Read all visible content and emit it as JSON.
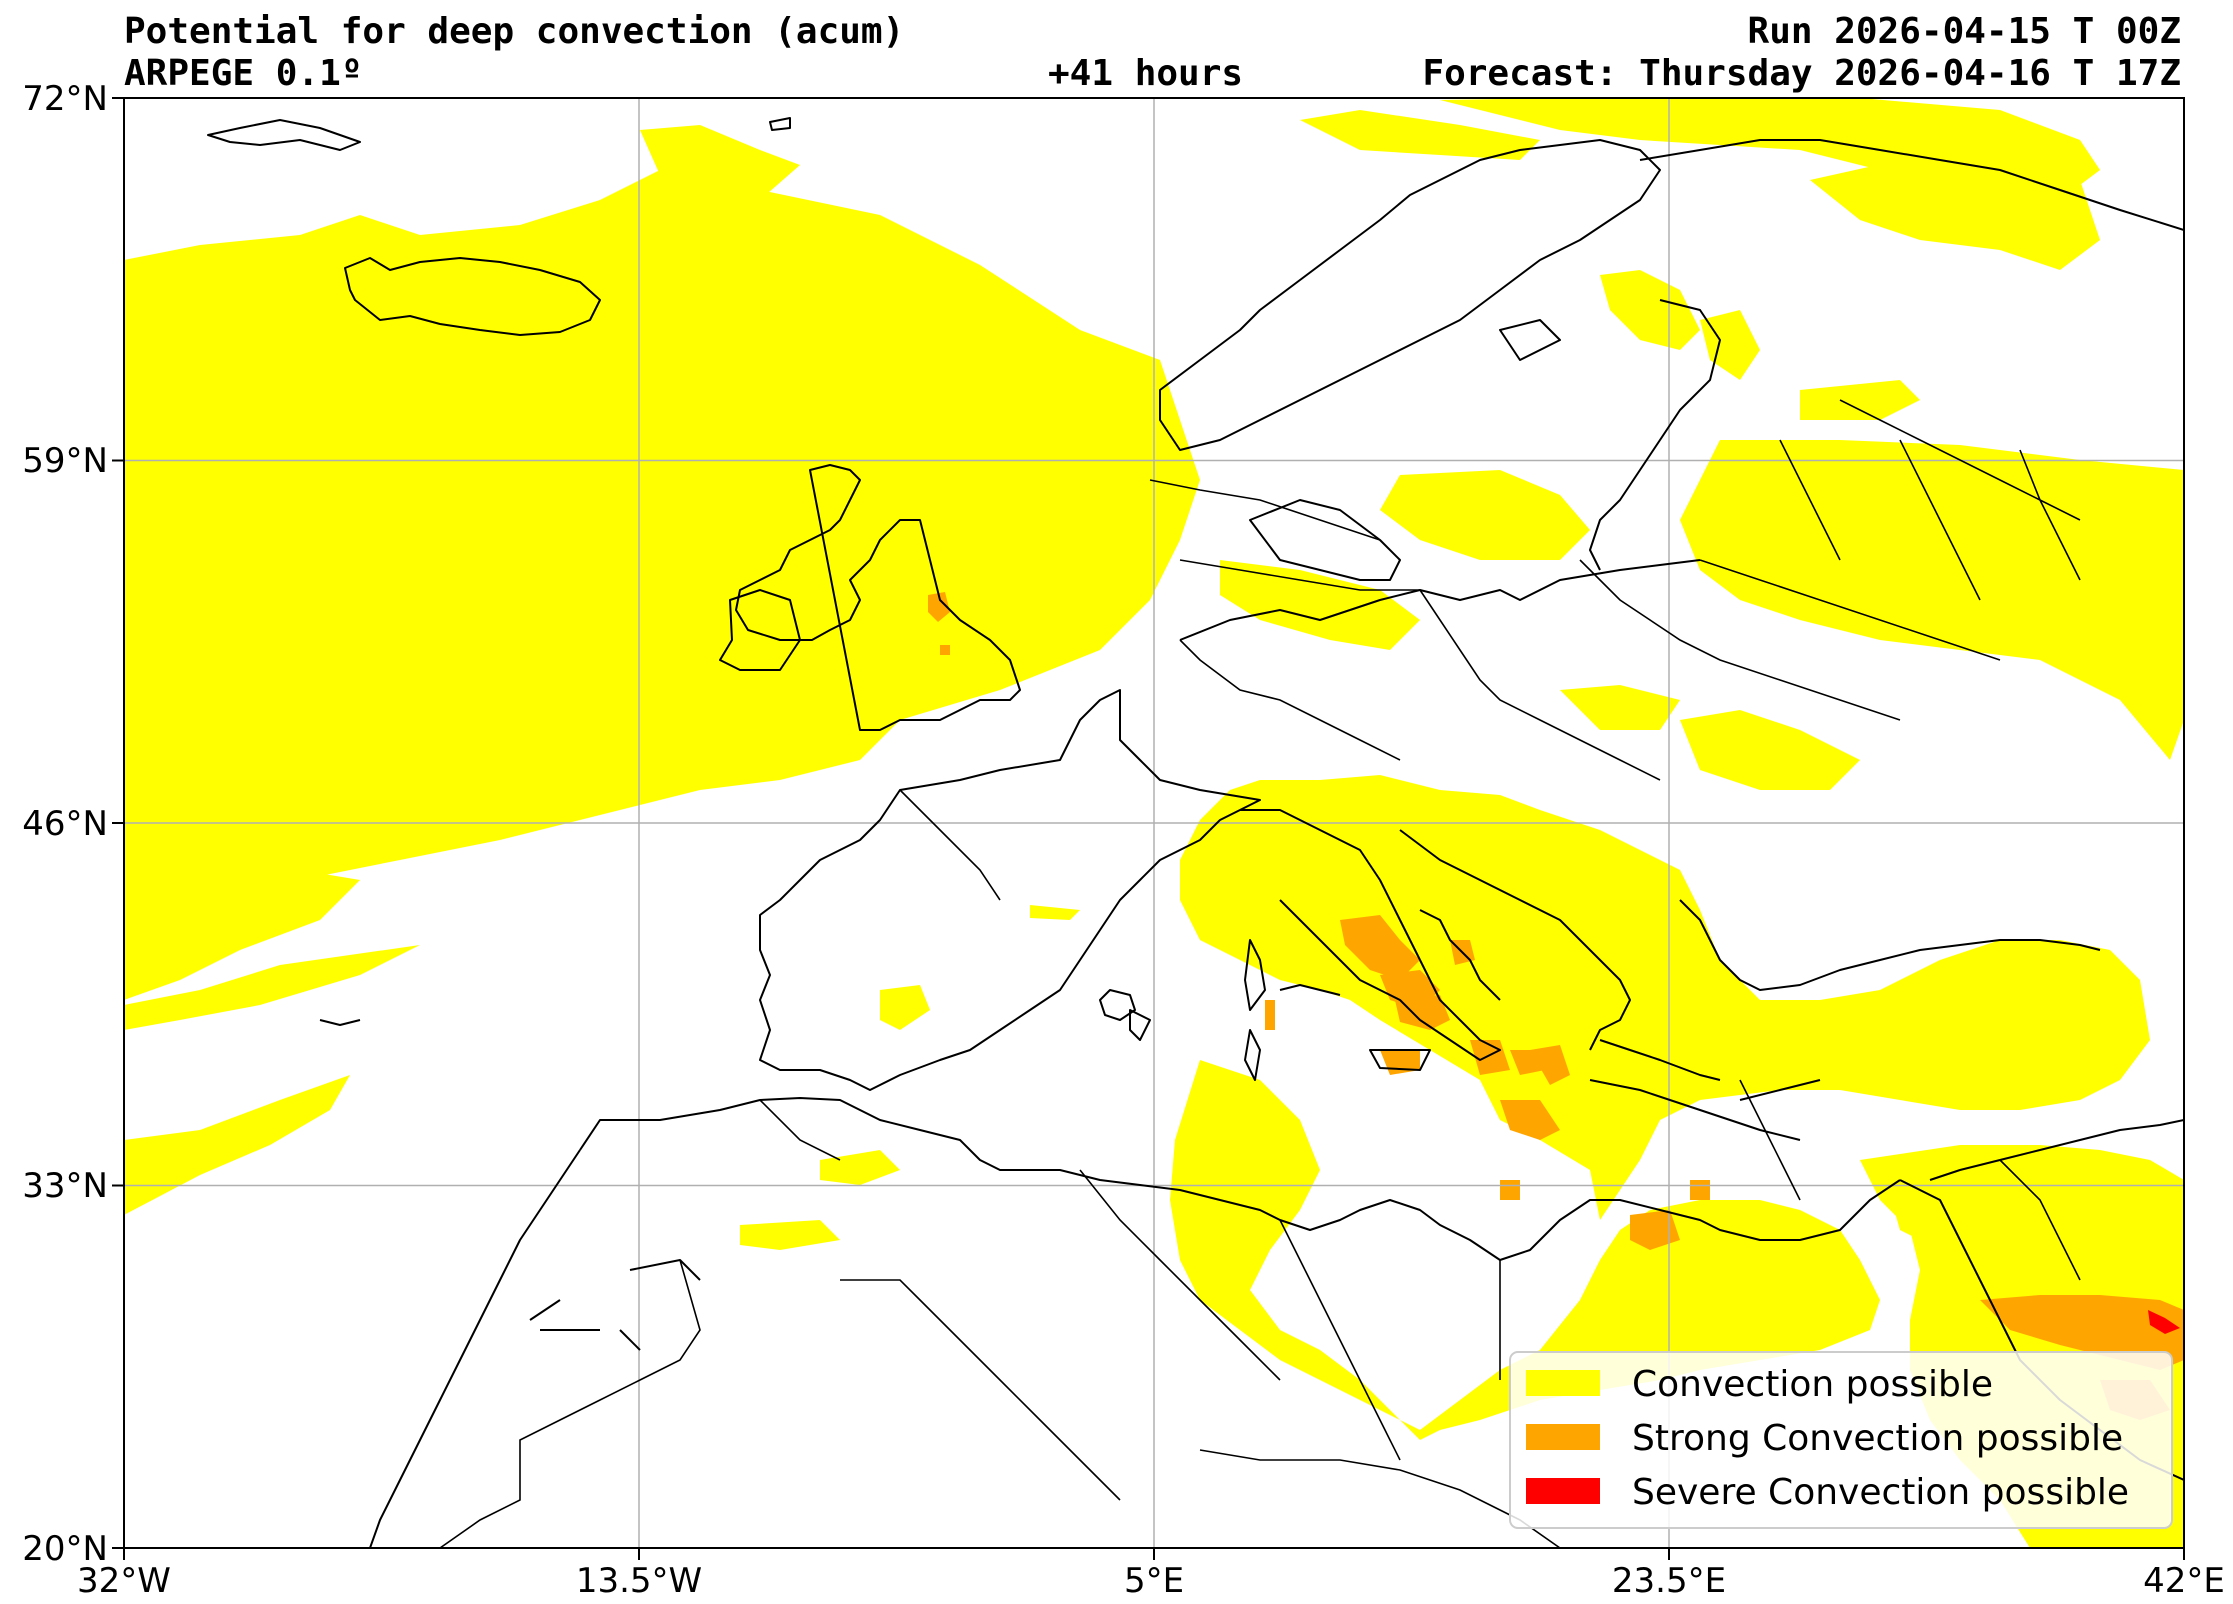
{
  "header": {
    "title": "Potential for deep convection (acum)",
    "model": "ARPEGE 0.1º",
    "run": "Run 2026-04-15 T 00Z",
    "lead": "+41 hours",
    "forecast": "Forecast: Thursday 2026-04-16 T 17Z"
  },
  "axes": {
    "lat_labels": [
      "72°N",
      "59°N",
      "46°N",
      "33°N",
      "20°N"
    ],
    "lon_labels": [
      "32°W",
      "13.5°W",
      "5°E",
      "23.5°E",
      "42°E"
    ],
    "lat_range": [
      20,
      72
    ],
    "lon_range": [
      -32,
      42
    ],
    "grid": true
  },
  "legend": {
    "placement": "lower-right",
    "items": [
      {
        "label": "Convection possible",
        "color": "#ffff00"
      },
      {
        "label": "Strong Convection possible",
        "color": "#ffa500"
      },
      {
        "label": "Severe Convection possible",
        "color": "#ff0000"
      }
    ]
  },
  "colors": {
    "convection": "#ffff00",
    "strong": "#ffa500",
    "severe": "#ff0000",
    "grid": "#b0b0b0",
    "coast": "#000000"
  }
}
